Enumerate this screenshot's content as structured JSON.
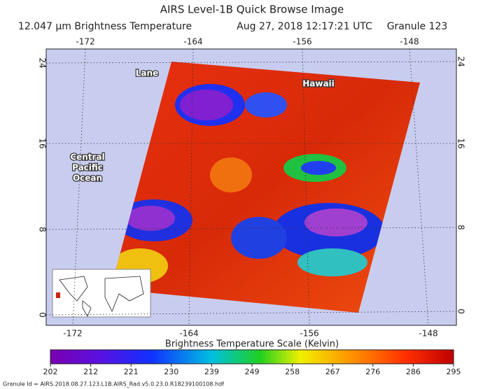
{
  "header": {
    "title": "AIRS Level-1B Quick Browse Image",
    "subtitle": [
      "12.047 μm Brightness Temperature",
      "Aug 27, 2018 12:17:21 UTC",
      "Granule 123"
    ]
  },
  "map": {
    "lon_ticks_top": [
      -172,
      -164,
      -156,
      -148
    ],
    "lon_ticks_bottom": [
      -172,
      -164,
      -156,
      -148
    ],
    "lat_ticks_left": [
      24,
      16,
      8,
      0
    ],
    "lat_ticks_right": [
      24,
      16,
      8,
      0
    ],
    "labels": {
      "lane": "Lane",
      "hawaii": "Hawaii",
      "ocean": [
        "Central",
        "Pacific",
        "Ocean"
      ]
    }
  },
  "colorbar": {
    "title": "Brightness Temperature Scale (Kelvin)",
    "ticks": [
      202,
      212,
      221,
      230,
      239,
      249,
      258,
      267,
      276,
      286,
      295
    ]
  },
  "footer": {
    "granule_id": "Granule Id = AIRS.2018.08.27.123.L1B.AIRS_Rad.v5.0.23.0.R18239100108.hdf"
  }
}
